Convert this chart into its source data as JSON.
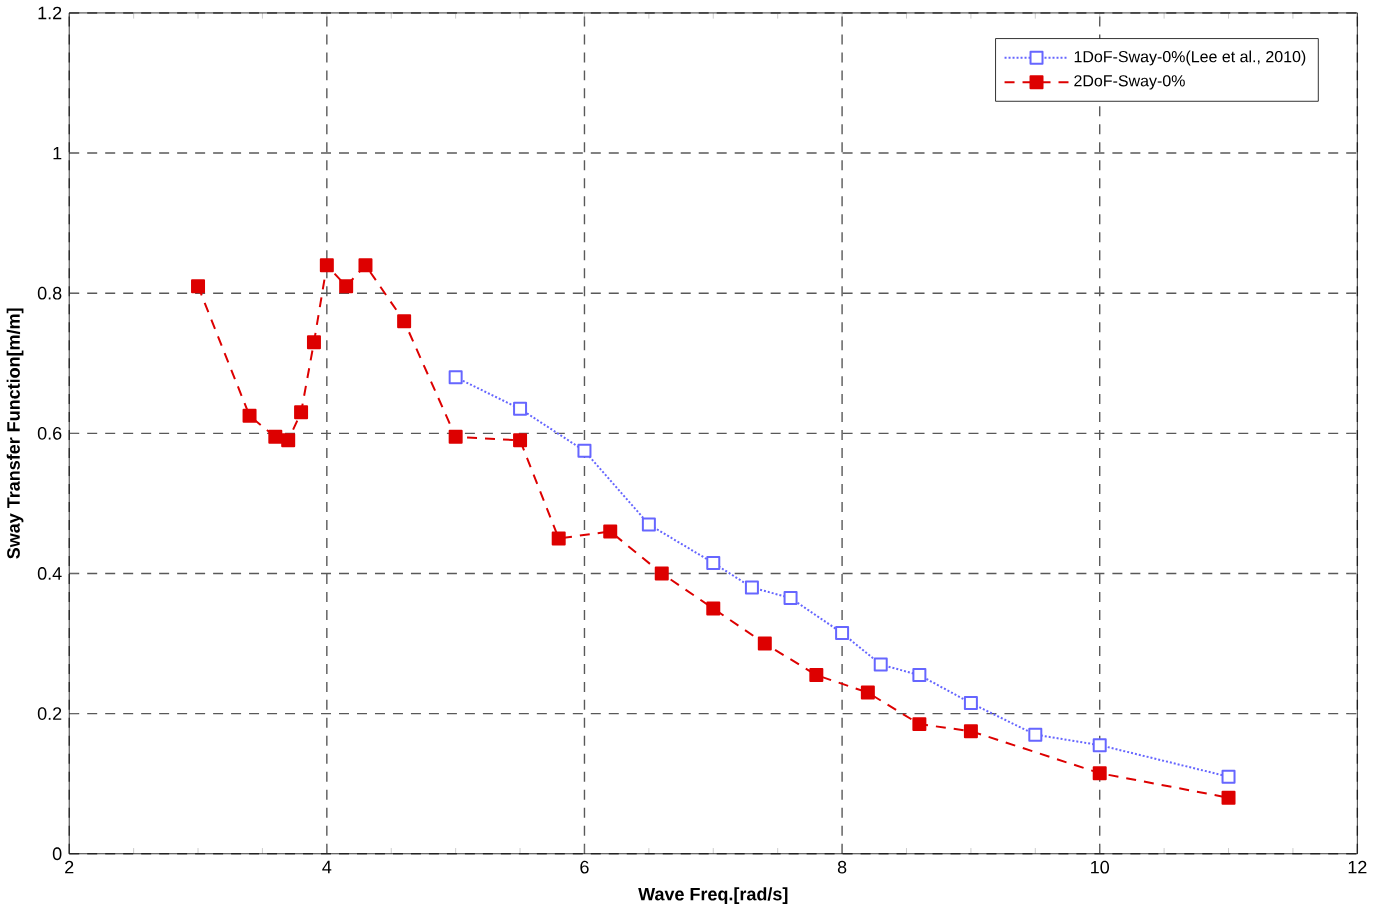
{
  "chart_data": {
    "type": "line",
    "xlabel": "Wave Freq.[rad/s]",
    "ylabel": "Sway Transfer Function[m/m]",
    "xlim": [
      2,
      12
    ],
    "xticks": [
      2,
      4,
      6,
      8,
      10,
      12
    ],
    "ylim": [
      0,
      1.2
    ],
    "yticks": [
      0,
      0.2,
      0.4,
      0.6,
      0.8,
      1,
      1.2
    ],
    "grid": true,
    "legend": "top right",
    "series": [
      {
        "name": "1DoF-Sway-0%(Lee et al., 2010)",
        "color": "#6666ff",
        "marker": "square",
        "line_style": "dotted",
        "x": [
          5,
          5.5,
          6,
          6.5,
          7,
          7.3,
          7.6,
          8,
          8.3,
          8.6,
          9,
          9.5,
          10,
          11
        ],
        "values": [
          0.68,
          0.635,
          0.575,
          0.47,
          0.415,
          0.38,
          0.365,
          0.315,
          0.27,
          0.255,
          0.215,
          0.17,
          0.155,
          0.11
        ]
      },
      {
        "name": "2DoF-Sway-0%",
        "color": "#dd0000",
        "marker": "square",
        "line_style": "dashed",
        "x": [
          3,
          3.4,
          3.6,
          3.7,
          3.8,
          3.9,
          4,
          4.15,
          4.3,
          4.6,
          5,
          5.5,
          5.8,
          6.2,
          6.6,
          7,
          7.4,
          7.8,
          8.2,
          8.6,
          9,
          10,
          11
        ],
        "values": [
          0.81,
          0.625,
          0.595,
          0.59,
          0.63,
          0.73,
          0.84,
          0.81,
          0.84,
          0.76,
          0.595,
          0.59,
          0.45,
          0.46,
          0.4,
          0.35,
          0.3,
          0.255,
          0.23,
          0.185,
          0.175,
          0.115,
          0.08
        ]
      }
    ]
  }
}
